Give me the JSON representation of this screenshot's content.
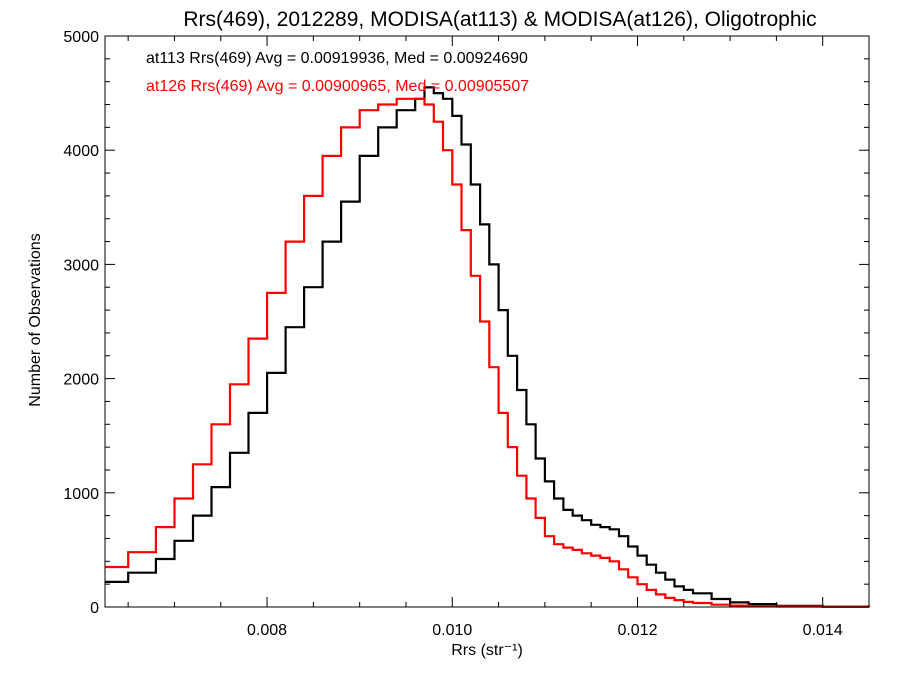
{
  "chart_data": {
    "type": "line",
    "title": "Rrs(469), 2012289, MODISA(at113) & MODISA(at126), Oligotrophic",
    "xlabel": "Rrs (str⁻¹)",
    "ylabel": "Number of Observations",
    "xlim": [
      0.00625,
      0.0145
    ],
    "ylim": [
      0,
      5000
    ],
    "x_ticks": [
      0.008,
      0.01,
      0.012,
      0.014
    ],
    "x_tick_labels": [
      "0.008",
      "0.010",
      "0.012",
      "0.014"
    ],
    "y_ticks": [
      0,
      1000,
      2000,
      3000,
      4000,
      5000
    ],
    "y_tick_labels": [
      "0",
      "1000",
      "2000",
      "3000",
      "4000",
      "5000"
    ],
    "grid": false,
    "legend_position": "top-left",
    "legend": [
      "at113 Rrs(469) Avg = 0.00919936, Med = 0.00924690",
      "at126 Rrs(469) Avg = 0.00900965, Med = 0.00905507"
    ],
    "series": [
      {
        "color": "#000000",
        "x": [
          0.00625,
          0.0065,
          0.0068,
          0.007,
          0.0072,
          0.0074,
          0.0076,
          0.0078,
          0.008,
          0.0082,
          0.0084,
          0.0086,
          0.0088,
          0.009,
          0.0092,
          0.0094,
          0.0096,
          0.0097,
          0.0098,
          0.0099,
          0.01,
          0.0101,
          0.0102,
          0.0103,
          0.0104,
          0.0105,
          0.0106,
          0.0107,
          0.0108,
          0.0109,
          0.011,
          0.0111,
          0.0112,
          0.0113,
          0.0114,
          0.0115,
          0.0116,
          0.0117,
          0.0118,
          0.0119,
          0.012,
          0.0121,
          0.0122,
          0.0123,
          0.0124,
          0.0125,
          0.0126,
          0.0128,
          0.013,
          0.0132,
          0.0135,
          0.014,
          0.0145
        ],
        "y": [
          220,
          300,
          420,
          580,
          800,
          1050,
          1350,
          1700,
          2050,
          2450,
          2800,
          3200,
          3550,
          3950,
          4200,
          4350,
          4450,
          4550,
          4500,
          4450,
          4300,
          4050,
          3700,
          3350,
          3000,
          2600,
          2200,
          1900,
          1600,
          1300,
          1100,
          950,
          850,
          800,
          760,
          720,
          700,
          680,
          620,
          530,
          450,
          370,
          300,
          240,
          180,
          150,
          120,
          70,
          40,
          25,
          10,
          3,
          0
        ]
      },
      {
        "color": "#ff0000",
        "x": [
          0.00625,
          0.0065,
          0.0068,
          0.007,
          0.0072,
          0.0074,
          0.0076,
          0.0078,
          0.008,
          0.0082,
          0.0084,
          0.0086,
          0.0088,
          0.009,
          0.0092,
          0.0094,
          0.0096,
          0.0097,
          0.0098,
          0.0099,
          0.01,
          0.0101,
          0.0102,
          0.0103,
          0.0104,
          0.0105,
          0.0106,
          0.0107,
          0.0108,
          0.0109,
          0.011,
          0.0111,
          0.0112,
          0.0113,
          0.0114,
          0.0115,
          0.0116,
          0.0117,
          0.0118,
          0.0119,
          0.012,
          0.0121,
          0.0122,
          0.0123,
          0.0124,
          0.0125,
          0.0126,
          0.0128,
          0.013,
          0.0132,
          0.0135,
          0.014,
          0.0145
        ],
        "y": [
          350,
          480,
          700,
          950,
          1250,
          1600,
          1950,
          2350,
          2750,
          3200,
          3600,
          3950,
          4200,
          4350,
          4400,
          4450,
          4450,
          4400,
          4250,
          4000,
          3700,
          3300,
          2900,
          2500,
          2100,
          1700,
          1400,
          1150,
          950,
          780,
          620,
          550,
          520,
          500,
          470,
          450,
          430,
          400,
          330,
          260,
          200,
          150,
          110,
          80,
          60,
          45,
          35,
          20,
          12,
          8,
          4,
          2,
          0
        ]
      }
    ]
  }
}
